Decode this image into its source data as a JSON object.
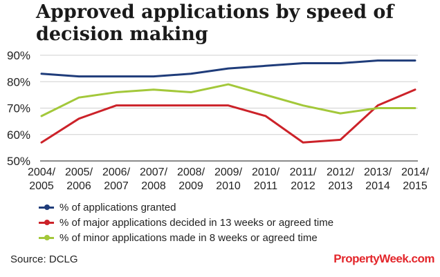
{
  "chart_data": {
    "type": "line",
    "title": "Approved applications by speed of decision making",
    "categories": [
      [
        "2004/",
        "2005"
      ],
      [
        "2005/",
        "2006"
      ],
      [
        "2006/",
        "2007"
      ],
      [
        "2007/",
        "2008"
      ],
      [
        "2008/",
        "2009"
      ],
      [
        "2009/",
        "2010"
      ],
      [
        "2010/",
        "2011"
      ],
      [
        "2011/",
        "2012"
      ],
      [
        "2012/",
        "2013"
      ],
      [
        "2013/",
        "2014"
      ],
      [
        "2014/",
        "2015"
      ]
    ],
    "ylim": [
      50,
      90
    ],
    "yticks": [
      "50%",
      "60%",
      "70%",
      "80%",
      "90%"
    ],
    "grid": true,
    "legend_position": "bottom",
    "series": [
      {
        "name": "% of applications granted",
        "color": "#1f3c7a",
        "values": [
          83,
          82,
          82,
          82,
          83,
          85,
          86,
          87,
          87,
          88,
          88
        ]
      },
      {
        "name": "% of major applications decided in 13 weeks or agreed time",
        "color": "#cc2229",
        "values": [
          57,
          66,
          71,
          71,
          71,
          71,
          67,
          57,
          58,
          71,
          77
        ]
      },
      {
        "name": "% of minor applications made in 8 weeks or agreed time",
        "color": "#a3c83a",
        "values": [
          67,
          74,
          76,
          77,
          76,
          79,
          75,
          71,
          68,
          70,
          70
        ]
      }
    ]
  },
  "source": "Source: DCLG",
  "brand": "PropertyWeek.com"
}
